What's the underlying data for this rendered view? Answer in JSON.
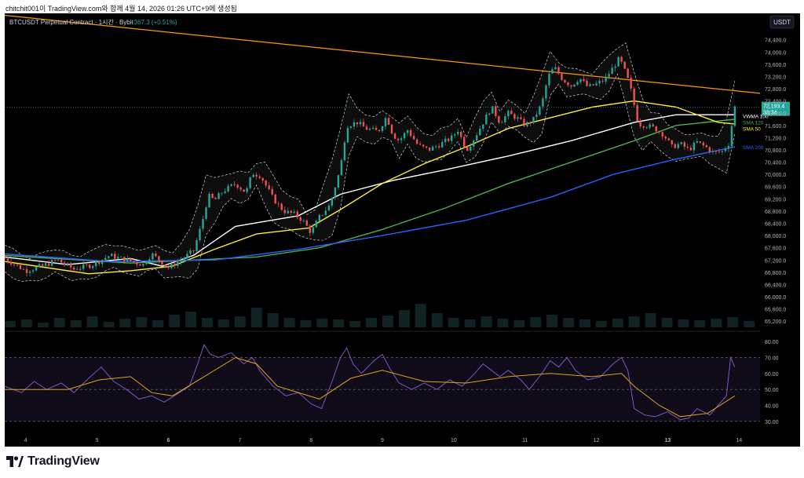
{
  "caption": "chitchit001이 TradingView.com와 함께 4월 14, 2026 01:26 UTC+9에 생성됨",
  "brand": {
    "name": "TradingView"
  },
  "chart_data": {
    "type": "candlestick",
    "title": "BTCUSDT Perpetual Contract · 1시간 · Bybit",
    "change_text": "+367.3 (+0.51%)",
    "currency_label": "USDT",
    "y_ticks": [
      "74,400.0",
      "74,000.0",
      "73,600.0",
      "73,200.0",
      "72,800.0",
      "72,400.0",
      "72,000.0",
      "71,600.0",
      "71,200.0",
      "70,800.0",
      "70,400.0",
      "70,000.0",
      "69,600.0",
      "69,200.0",
      "68,800.0",
      "68,400.0",
      "68,000.0",
      "67,600.0",
      "67,200.0",
      "66,800.0",
      "66,400.0",
      "66,000.0",
      "65,600.0",
      "65,200.0"
    ],
    "ylim": [
      65000,
      74700
    ],
    "x_ticks": [
      "4",
      "5",
      "6",
      "7",
      "8",
      "9",
      "10",
      "11",
      "12",
      "13",
      "14"
    ],
    "last_price": "72,193.4",
    "countdown": "33:34",
    "close_path": [
      [
        0,
        67250
      ],
      [
        10,
        66850
      ],
      [
        18,
        67000
      ],
      [
        25,
        67200
      ],
      [
        33,
        66900
      ],
      [
        42,
        67050
      ],
      [
        50,
        67350
      ],
      [
        58,
        67200
      ],
      [
        66,
        67050
      ],
      [
        70,
        67400
      ],
      [
        78,
        66950
      ],
      [
        84,
        67200
      ],
      [
        90,
        67500
      ],
      [
        94,
        68400
      ],
      [
        97,
        69300
      ],
      [
        100,
        69150
      ],
      [
        104,
        69450
      ],
      [
        110,
        69700
      ],
      [
        115,
        69400
      ],
      [
        118,
        70050
      ],
      [
        122,
        69950
      ],
      [
        128,
        69200
      ],
      [
        133,
        68800
      ],
      [
        138,
        68700
      ],
      [
        142,
        68500
      ],
      [
        146,
        68100
      ],
      [
        150,
        68600
      ],
      [
        155,
        69000
      ],
      [
        160,
        70200
      ],
      [
        163,
        71600
      ],
      [
        168,
        71700
      ],
      [
        172,
        71500
      ],
      [
        178,
        71400
      ],
      [
        182,
        71900
      ],
      [
        185,
        71300
      ],
      [
        188,
        71100
      ],
      [
        192,
        71450
      ],
      [
        197,
        70950
      ],
      [
        202,
        70800
      ],
      [
        208,
        71000
      ],
      [
        213,
        71200
      ],
      [
        216,
        71450
      ],
      [
        220,
        70800
      ],
      [
        224,
        71200
      ],
      [
        228,
        71700
      ],
      [
        232,
        72200
      ],
      [
        236,
        71700
      ],
      [
        240,
        72000
      ],
      [
        244,
        71850
      ],
      [
        248,
        71600
      ],
      [
        252,
        71800
      ],
      [
        256,
        72300
      ],
      [
        259,
        73200
      ],
      [
        262,
        73500
      ],
      [
        266,
        73100
      ],
      [
        270,
        72900
      ],
      [
        274,
        73150
      ],
      [
        278,
        72850
      ],
      [
        282,
        72950
      ],
      [
        286,
        73100
      ],
      [
        290,
        73500
      ],
      [
        293,
        73800
      ],
      [
        296,
        73300
      ],
      [
        298,
        72900
      ],
      [
        302,
        71650
      ],
      [
        306,
        71600
      ],
      [
        310,
        71500
      ],
      [
        314,
        71300
      ],
      [
        318,
        70900
      ],
      [
        322,
        71000
      ],
      [
        326,
        70800
      ],
      [
        330,
        71050
      ],
      [
        334,
        70900
      ],
      [
        338,
        70700
      ],
      [
        342,
        70750
      ],
      [
        345,
        71000
      ],
      [
        348,
        72200
      ]
    ],
    "indicators": [
      {
        "name": "VWMA 100",
        "color": "#ffffff",
        "path": [
          [
            0,
            67300
          ],
          [
            30,
            67050
          ],
          [
            60,
            67250
          ],
          [
            75,
            67000
          ],
          [
            90,
            67350
          ],
          [
            110,
            68300
          ],
          [
            140,
            68650
          ],
          [
            160,
            69350
          ],
          [
            185,
            69800
          ],
          [
            210,
            70150
          ],
          [
            240,
            70600
          ],
          [
            270,
            71100
          ],
          [
            300,
            71700
          ],
          [
            320,
            71950
          ],
          [
            348,
            71950
          ]
        ]
      },
      {
        "name": "SMA 120",
        "color": "#4caf50",
        "path": [
          [
            0,
            67350
          ],
          [
            60,
            67100
          ],
          [
            90,
            67200
          ],
          [
            120,
            67300
          ],
          [
            150,
            67600
          ],
          [
            180,
            68200
          ],
          [
            210,
            68900
          ],
          [
            240,
            69700
          ],
          [
            270,
            70400
          ],
          [
            300,
            71100
          ],
          [
            320,
            71600
          ],
          [
            348,
            71800
          ]
        ]
      },
      {
        "name": "SMA 50",
        "color": "#ffeb3b",
        "path": [
          [
            0,
            67150
          ],
          [
            20,
            66950
          ],
          [
            40,
            66750
          ],
          [
            60,
            66850
          ],
          [
            80,
            67000
          ],
          [
            100,
            67550
          ],
          [
            120,
            68050
          ],
          [
            145,
            68250
          ],
          [
            160,
            68850
          ],
          [
            180,
            69700
          ],
          [
            200,
            70350
          ],
          [
            220,
            70900
          ],
          [
            240,
            71500
          ],
          [
            260,
            71850
          ],
          [
            280,
            72200
          ],
          [
            300,
            72400
          ],
          [
            320,
            72200
          ],
          [
            340,
            71700
          ],
          [
            348,
            71650
          ]
        ]
      },
      {
        "name": "SMA 200",
        "color": "#2962ff",
        "path": [
          [
            0,
            67400
          ],
          [
            50,
            67150
          ],
          [
            100,
            67200
          ],
          [
            140,
            67550
          ],
          [
            180,
            68000
          ],
          [
            220,
            68500
          ],
          [
            260,
            69250
          ],
          [
            290,
            70000
          ],
          [
            320,
            70500
          ],
          [
            348,
            70900
          ]
        ]
      }
    ],
    "trendline": {
      "color": "#ff9800",
      "path": [
        [
          0,
          75200
        ],
        [
          360,
          72650
        ]
      ]
    },
    "rsi": {
      "levels": [
        "80.00",
        "70.00",
        "60.00",
        "50.00",
        "40.00",
        "30.00"
      ],
      "ylim": [
        26,
        84
      ],
      "upper": 70,
      "mid": 50,
      "lower": 30,
      "line_color": "#7e57c2",
      "ma_color": "#e0a419",
      "rsi_path": [
        [
          0,
          52
        ],
        [
          8,
          48
        ],
        [
          14,
          55
        ],
        [
          20,
          50
        ],
        [
          27,
          54
        ],
        [
          33,
          48
        ],
        [
          40,
          57
        ],
        [
          46,
          64
        ],
        [
          52,
          55
        ],
        [
          58,
          50
        ],
        [
          64,
          44
        ],
        [
          70,
          46
        ],
        [
          76,
          42
        ],
        [
          82,
          47
        ],
        [
          88,
          52
        ],
        [
          92,
          66
        ],
        [
          95,
          78
        ],
        [
          98,
          72
        ],
        [
          102,
          70
        ],
        [
          108,
          73
        ],
        [
          114,
          66
        ],
        [
          118,
          70
        ],
        [
          122,
          61
        ],
        [
          128,
          52
        ],
        [
          134,
          46
        ],
        [
          140,
          48
        ],
        [
          146,
          41
        ],
        [
          151,
          38
        ],
        [
          156,
          55
        ],
        [
          160,
          70
        ],
        [
          163,
          76
        ],
        [
          166,
          66
        ],
        [
          170,
          60
        ],
        [
          176,
          68
        ],
        [
          180,
          72
        ],
        [
          184,
          62
        ],
        [
          188,
          54
        ],
        [
          194,
          50
        ],
        [
          200,
          54
        ],
        [
          206,
          50
        ],
        [
          212,
          56
        ],
        [
          218,
          52
        ],
        [
          224,
          60
        ],
        [
          228,
          66
        ],
        [
          232,
          62
        ],
        [
          236,
          58
        ],
        [
          240,
          62
        ],
        [
          246,
          56
        ],
        [
          250,
          50
        ],
        [
          256,
          60
        ],
        [
          260,
          68
        ],
        [
          264,
          64
        ],
        [
          268,
          70
        ],
        [
          272,
          62
        ],
        [
          278,
          56
        ],
        [
          284,
          58
        ],
        [
          290,
          66
        ],
        [
          294,
          70
        ],
        [
          297,
          62
        ],
        [
          300,
          38
        ],
        [
          305,
          34
        ],
        [
          310,
          33
        ],
        [
          316,
          36
        ],
        [
          322,
          31
        ],
        [
          326,
          32
        ],
        [
          330,
          38
        ],
        [
          336,
          34
        ],
        [
          340,
          40
        ],
        [
          344,
          46
        ],
        [
          346,
          70
        ],
        [
          348,
          64
        ]
      ],
      "ma_path": [
        [
          0,
          50
        ],
        [
          30,
          50
        ],
        [
          45,
          56
        ],
        [
          60,
          58
        ],
        [
          70,
          48
        ],
        [
          80,
          46
        ],
        [
          95,
          58
        ],
        [
          110,
          70
        ],
        [
          120,
          66
        ],
        [
          130,
          52
        ],
        [
          150,
          44
        ],
        [
          165,
          57
        ],
        [
          180,
          62
        ],
        [
          200,
          55
        ],
        [
          220,
          54
        ],
        [
          240,
          58
        ],
        [
          260,
          60
        ],
        [
          280,
          58
        ],
        [
          294,
          60
        ],
        [
          300,
          52
        ],
        [
          312,
          40
        ],
        [
          322,
          33
        ],
        [
          335,
          35
        ],
        [
          348,
          46
        ]
      ]
    },
    "volume_bars": [
      8,
      10,
      6,
      12,
      9,
      14,
      7,
      11,
      13,
      9,
      16,
      20,
      12,
      10,
      14,
      25,
      18,
      12,
      9,
      11,
      10,
      8,
      12,
      15,
      22,
      30,
      18,
      12,
      10,
      14,
      11,
      9,
      13,
      16,
      12,
      10,
      8,
      11,
      14,
      18,
      12,
      10,
      9,
      11,
      13,
      8
    ]
  }
}
